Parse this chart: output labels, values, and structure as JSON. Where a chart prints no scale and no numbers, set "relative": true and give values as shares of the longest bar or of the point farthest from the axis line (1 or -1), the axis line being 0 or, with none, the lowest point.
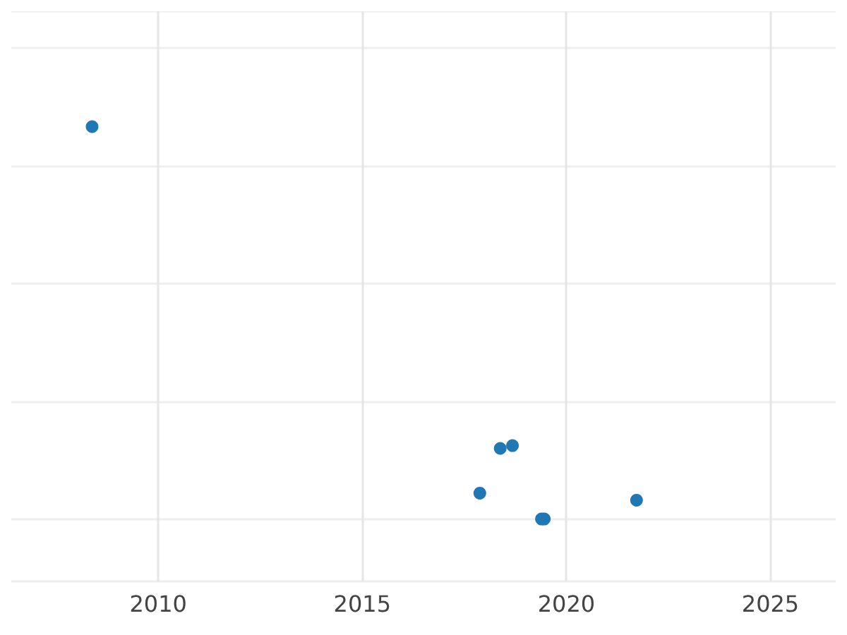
{
  "chart_data": {
    "type": "scatter",
    "relative": true,
    "x": [
      2008.38,
      2017.88,
      2018.38,
      2018.68,
      2019.39,
      2019.46,
      2021.72
    ],
    "series": [
      {
        "color": "#1f77b4",
        "values": [
          1,
          0.066,
          0.18,
          0.187,
          0,
          0,
          0.048
        ]
      }
    ],
    "xlim": [
      2006.4,
      2026.6
    ],
    "xticks": [
      2010,
      2015,
      2020,
      2025
    ],
    "grid": true,
    "marker": "circle"
  }
}
